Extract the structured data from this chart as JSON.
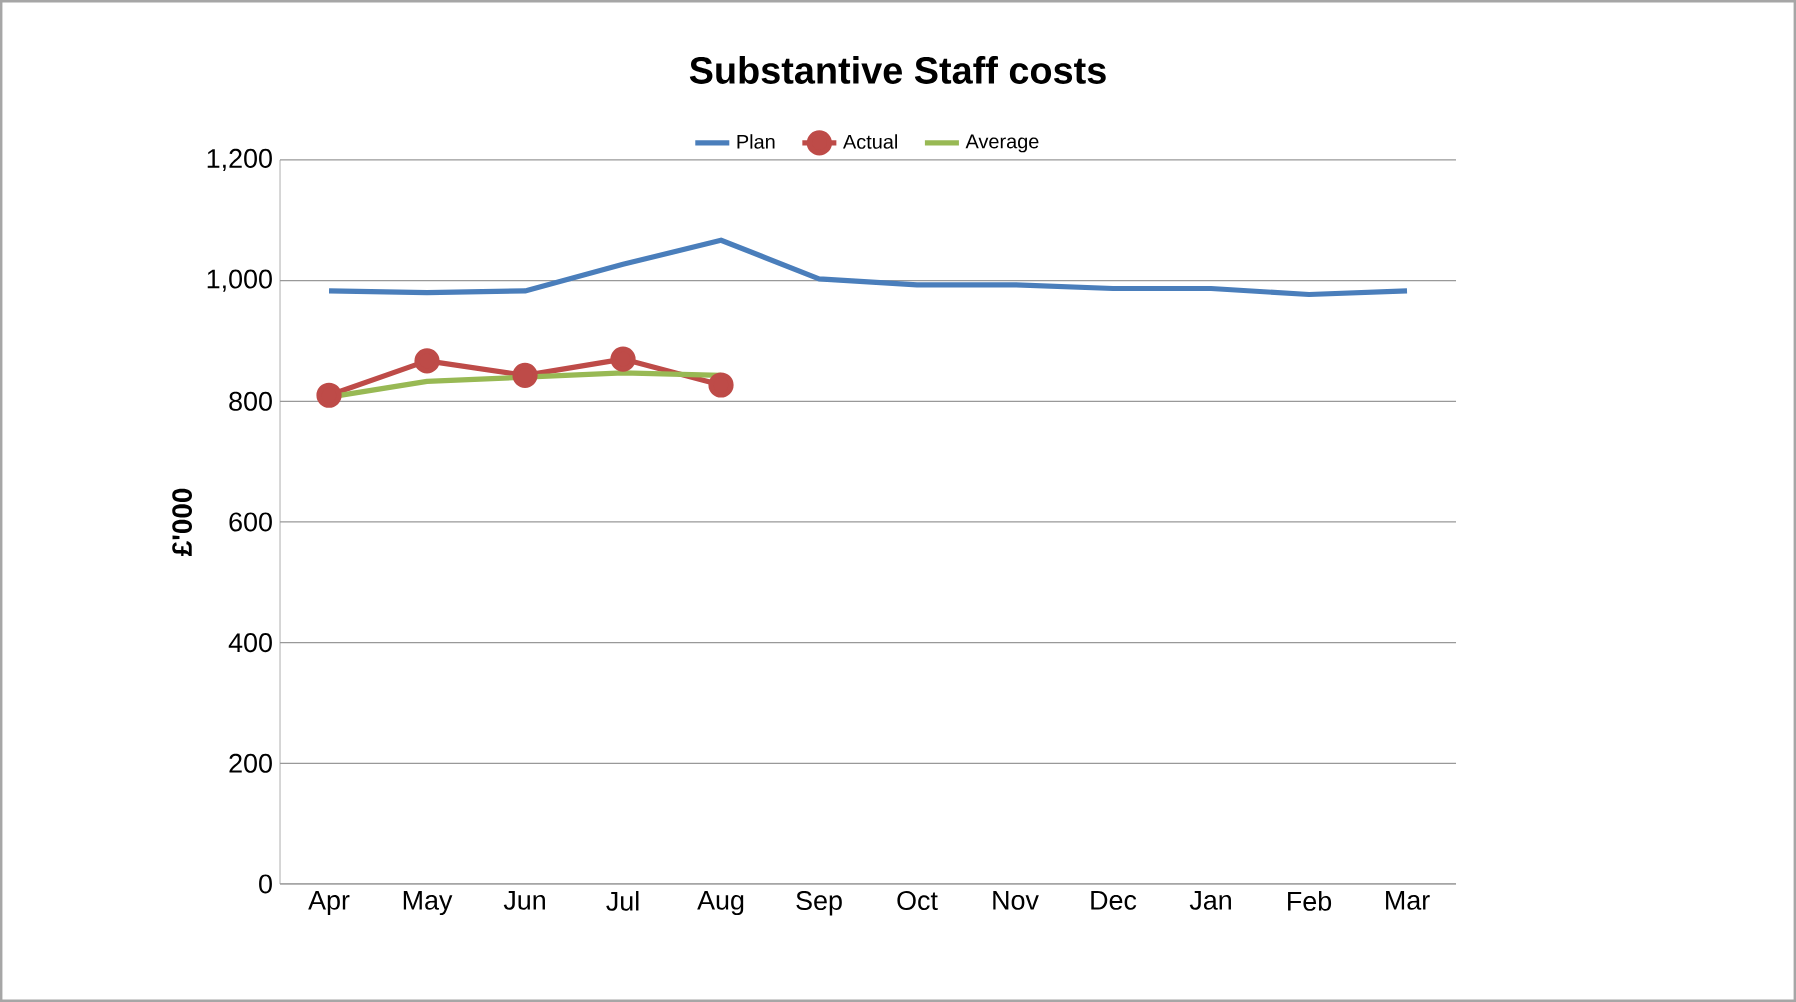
{
  "chart_data": {
    "type": "line",
    "title": "Substantive Staff costs",
    "ylabel": "£'000",
    "categories": [
      "Apr",
      "May",
      "Jun",
      "Jul",
      "Aug",
      "Sep",
      "Oct",
      "Nov",
      "Dec",
      "Jan",
      "Feb",
      "Mar"
    ],
    "series": [
      {
        "name": "Plan",
        "color": "#4a7ebb",
        "marker": "none",
        "values": [
          983,
          980,
          983,
          1027,
          1067,
          1003,
          993,
          993,
          987,
          987,
          977,
          983
        ]
      },
      {
        "name": "Actual",
        "color": "#be4b48",
        "marker": "circle",
        "values": [
          810,
          867,
          843,
          870,
          827,
          null,
          null,
          null,
          null,
          null,
          null,
          null
        ]
      },
      {
        "name": "Average",
        "color": "#98b954",
        "marker": "none",
        "values": [
          807,
          833,
          840,
          847,
          843,
          null,
          null,
          null,
          null,
          null,
          null,
          null
        ]
      }
    ],
    "ylim": [
      0,
      1200
    ],
    "yticks": [
      {
        "value": 0,
        "label": "0"
      },
      {
        "value": 200,
        "label": "200"
      },
      {
        "value": 400,
        "label": "400"
      },
      {
        "value": 600,
        "label": "600"
      },
      {
        "value": 800,
        "label": "800"
      },
      {
        "value": 1000,
        "label": "1,000"
      },
      {
        "value": 1200,
        "label": "1,200"
      }
    ],
    "grid": "y",
    "legend": "top"
  }
}
